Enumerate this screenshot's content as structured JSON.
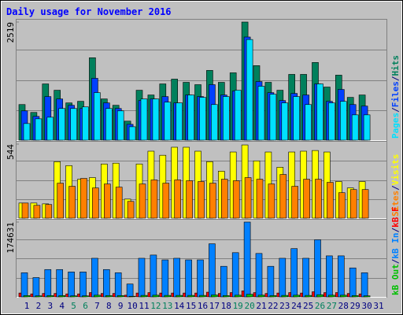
{
  "chart_data": {
    "type": "bar",
    "title": "Daily usage for November 2016",
    "categories": [
      "1",
      "2",
      "3",
      "4",
      "5",
      "6",
      "7",
      "8",
      "9",
      "10",
      "11",
      "12",
      "13",
      "14",
      "15",
      "16",
      "17",
      "18",
      "19",
      "20",
      "21",
      "22",
      "23",
      "24",
      "25",
      "26",
      "27",
      "28",
      "29",
      "30",
      "31"
    ],
    "label_colors": [
      "#000080",
      "#000080",
      "#000080",
      "#000080",
      "#00805c",
      "#00805c",
      "#000080",
      "#000080",
      "#000080",
      "#000080",
      "#000080",
      "#00805c",
      "#00805c",
      "#000080",
      "#000080",
      "#000080",
      "#000080",
      "#000080",
      "#00805c",
      "#00805c",
      "#000080",
      "#000080",
      "#000080",
      "#000080",
      "#000080",
      "#00805c",
      "#00805c",
      "#000080",
      "#000080",
      "#000080",
      "#000080"
    ],
    "legend_separator": "/",
    "grid": true,
    "panels": [
      {
        "ylim": [
          0,
          2519
        ],
        "yticks": [
          2519
        ],
        "series": [
          {
            "name": "Hits",
            "color": "#00805c",
            "values": [
              760,
              592,
              1200,
              1065,
              795,
              829,
              1758,
              880,
              744,
              406,
              1065,
              964,
              1200,
              1302,
              1234,
              1184,
              1488,
              1234,
              1437,
              2519,
              1590,
              1234,
              1065,
              1403,
              1403,
              1657,
              1133,
              1387,
              913,
              964,
              null
            ]
          },
          {
            "name": "Files",
            "color": "#0040ff",
            "values": [
              625,
              507,
              930,
              879,
              744,
              676,
              1319,
              795,
              676,
              338,
              845,
              879,
              930,
              795,
              964,
              930,
              1184,
              964,
              1048,
              2200,
              1250,
              1014,
              845,
              997,
              964,
              1200,
              828,
              1082,
              760,
              727,
              null
            ]
          },
          {
            "name": "Pages",
            "color": "#00e0ff",
            "values": [
              355,
              456,
              490,
              676,
              676,
              710,
              1014,
              676,
              625,
              287,
              879,
              879,
              811,
              795,
              964,
              913,
              760,
              930,
              1065,
              2147,
              1150,
              980,
              795,
              930,
              760,
              1200,
              795,
              828,
              540,
              540,
              null
            ]
          }
        ]
      },
      {
        "ylim": [
          0,
          544
        ],
        "yticks": [
          544
        ],
        "series": [
          {
            "name": "Visits",
            "color": "#ffff00",
            "values": [
              111,
              111,
              105,
              415,
              386,
              286,
              298,
              398,
              404,
              140,
              398,
              492,
              462,
              521,
              521,
              492,
              415,
              345,
              486,
              538,
              421,
              486,
              374,
              486,
              492,
              497,
              486,
              269,
              222,
              269,
              null
            ]
          },
          {
            "name": "Sites",
            "color": "#ff8000",
            "values": [
              111,
              94,
              100,
              257,
              234,
              292,
              222,
              251,
              228,
              123,
              251,
              281,
              257,
              281,
              275,
              269,
              257,
              286,
              275,
              298,
              286,
              251,
              321,
              234,
              286,
              286,
              263,
              187,
              210,
              210,
              null
            ]
          }
        ]
      },
      {
        "ylim": [
          0,
          174631
        ],
        "yticks": [
          174631
        ],
        "series": [
          {
            "name": "kB F",
            "color": "#ff0000",
            "values": [
              9000,
              7000,
              8000,
              8000,
              7000,
              7000,
              10000,
              8000,
              8000,
              4000,
              9000,
              10000,
              9000,
              9000,
              9000,
              9000,
              11000,
              8000,
              10000,
              14000,
              10000,
              8000,
              9000,
              10000,
              9000,
              12000,
              10000,
              10000,
              8000,
              7000,
              null
            ]
          },
          {
            "name": "kB In",
            "color": "#0080ff",
            "values": [
              56334,
              45067,
              63845,
              63845,
              58212,
              58212,
              90134,
              63845,
              56334,
              30045,
              90134,
              97646,
              86379,
              90134,
              86379,
              86379,
              123935,
              71356,
              103279,
              174631,
              101401,
              71356,
              90134,
              112668,
              90134,
              133324,
              95768,
              95768,
              67601,
              56334,
              null
            ]
          },
          {
            "name": "kB Out",
            "color": "#00c000",
            "values": [
              3000,
              2500,
              3000,
              3000,
              2500,
              2500,
              4000,
              3000,
              3000,
              1500,
              3500,
              4000,
              3500,
              3500,
              3500,
              3500,
              4500,
              3000,
              4000,
              6000,
              4000,
              3000,
              3500,
              4000,
              3500,
              5000,
              4000,
              4000,
              3000,
              2500,
              null
            ]
          }
        ]
      }
    ]
  }
}
